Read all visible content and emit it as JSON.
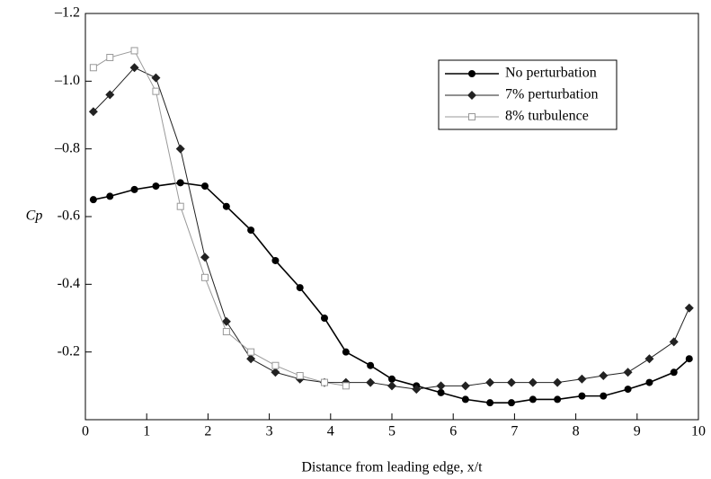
{
  "chart_data": {
    "type": "line",
    "ylabel": "Cp",
    "xlabel": "Distance from leading edge, x/t",
    "xlim": [
      0,
      10
    ],
    "xticks": [
      0,
      1,
      2,
      3,
      4,
      5,
      6,
      7,
      8,
      9,
      10
    ],
    "ylim": [
      0,
      -1.2
    ],
    "yticks": [
      {
        "value": -1.2,
        "label": "–1.2"
      },
      {
        "value": -1.0,
        "label": "–1.0"
      },
      {
        "value": -0.8,
        "label": "–0.8"
      },
      -0.6,
      -0.4,
      -0.2
    ],
    "legend": "upper right",
    "series": [
      {
        "name": "No perturbation",
        "color": "#000000",
        "marker": "circle",
        "x": [
          0.13,
          0.4,
          0.8,
          1.15,
          1.55,
          1.95,
          2.3,
          2.7,
          3.1,
          3.5,
          3.9,
          4.25,
          4.65,
          5.0,
          5.4,
          5.8,
          6.2,
          6.6,
          6.95,
          7.3,
          7.7,
          8.1,
          8.45,
          8.85,
          9.2,
          9.6,
          9.85
        ],
        "values": [
          -0.65,
          -0.66,
          -0.68,
          -0.69,
          -0.7,
          -0.69,
          -0.63,
          -0.56,
          -0.47,
          -0.39,
          -0.3,
          -0.2,
          -0.16,
          -0.12,
          -0.1,
          -0.08,
          -0.06,
          -0.05,
          -0.05,
          -0.06,
          -0.06,
          -0.07,
          -0.07,
          -0.09,
          -0.11,
          -0.14,
          -0.18
        ]
      },
      {
        "name": "7% perturbation",
        "color": "#222222",
        "marker": "diamond",
        "x": [
          0.13,
          0.4,
          0.8,
          1.15,
          1.55,
          1.95,
          2.3,
          2.7,
          3.1,
          3.5,
          3.9,
          4.25,
          4.65,
          5.0,
          5.4,
          5.8,
          6.2,
          6.6,
          6.95,
          7.3,
          7.7,
          8.1,
          8.45,
          8.85,
          9.2,
          9.6,
          9.85
        ],
        "values": [
          -0.91,
          -0.96,
          -1.04,
          -1.01,
          -0.8,
          -0.48,
          -0.29,
          -0.18,
          -0.14,
          -0.12,
          -0.11,
          -0.11,
          -0.11,
          -0.1,
          -0.09,
          -0.1,
          -0.1,
          -0.11,
          -0.11,
          -0.11,
          -0.11,
          -0.12,
          -0.13,
          -0.14,
          -0.18,
          -0.23,
          -0.33
        ]
      },
      {
        "name": "8% turbulence",
        "color": "#999999",
        "marker": "square",
        "x": [
          0.13,
          0.4,
          0.8,
          1.15,
          1.55,
          1.95,
          2.3,
          2.7,
          3.1,
          3.5,
          3.9,
          4.25
        ],
        "values": [
          -1.04,
          -1.07,
          -1.09,
          -0.97,
          -0.63,
          -0.42,
          -0.26,
          -0.2,
          -0.16,
          -0.13,
          -0.11,
          -0.1
        ]
      }
    ]
  }
}
